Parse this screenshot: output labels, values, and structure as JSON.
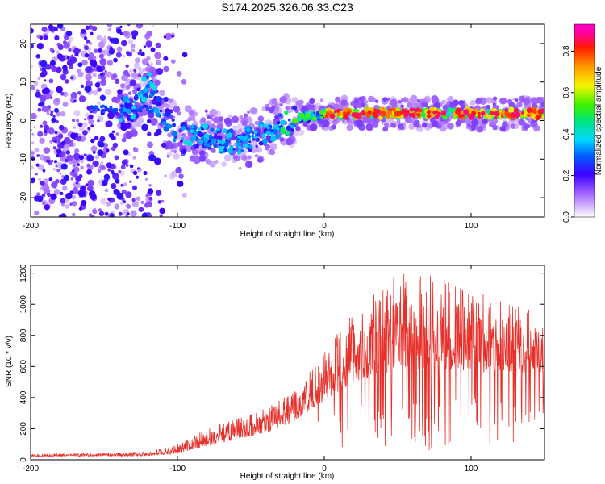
{
  "title": "S174.2025.326.06.33.C23",
  "chart_data": [
    {
      "type": "heatmap",
      "xlabel": "Height of straight line (km)",
      "ylabel": "Frequency (Hz)",
      "xlim": [
        -200,
        150
      ],
      "ylim": [
        -25,
        25
      ],
      "xticks": [
        -200,
        -100,
        0,
        100
      ],
      "yticks": [
        -20,
        -10,
        0,
        10,
        20
      ],
      "colorbar": {
        "label": "Normalized spectral amplitude",
        "range": [
          0,
          0.93
        ],
        "ticks": [
          0,
          0.2,
          0.4,
          0.6,
          0.8
        ],
        "tick_labels": [
          "0.0",
          "0.2",
          "0.4",
          "0.6",
          "0.8"
        ]
      },
      "ridge": [
        {
          "x": -130,
          "f": 3.0
        },
        {
          "x": -120,
          "f": 10.0
        },
        {
          "x": -110,
          "f": 1.0
        },
        {
          "x": -100,
          "f": -3.0
        },
        {
          "x": -80,
          "f": -4.0
        },
        {
          "x": -60,
          "f": -6.0
        },
        {
          "x": -40,
          "f": -3.0
        },
        {
          "x": -20,
          "f": 0.5
        },
        {
          "x": 0,
          "f": 2.0
        },
        {
          "x": 20,
          "f": 1.8
        },
        {
          "x": 60,
          "f": 1.8
        },
        {
          "x": 100,
          "f": 1.8
        },
        {
          "x": 150,
          "f": 1.8
        }
      ]
    },
    {
      "type": "line",
      "xlabel": "Height of straight line (km)",
      "ylabel": "SNR (10 * v/v)",
      "xlim": [
        -200,
        150
      ],
      "ylim": [
        0,
        1250
      ],
      "xticks": [
        -200,
        -100,
        0,
        100
      ],
      "yticks": [
        0,
        200,
        400,
        600,
        800,
        1000,
        1200
      ],
      "color": "#e8302a",
      "envelope": [
        {
          "x": -200,
          "base": 20,
          "peak": 35
        },
        {
          "x": -120,
          "base": 25,
          "peak": 50
        },
        {
          "x": -100,
          "base": 40,
          "peak": 100
        },
        {
          "x": -80,
          "base": 90,
          "peak": 200
        },
        {
          "x": -60,
          "base": 130,
          "peak": 270
        },
        {
          "x": -40,
          "base": 170,
          "peak": 330
        },
        {
          "x": -20,
          "base": 250,
          "peak": 450
        },
        {
          "x": 0,
          "base": 380,
          "peak": 700
        },
        {
          "x": 20,
          "base": 500,
          "peak": 950
        },
        {
          "x": 50,
          "base": 580,
          "peak": 1200
        },
        {
          "x": 80,
          "base": 580,
          "peak": 1180
        },
        {
          "x": 110,
          "base": 560,
          "peak": 1060
        },
        {
          "x": 150,
          "base": 550,
          "peak": 950
        }
      ]
    }
  ]
}
